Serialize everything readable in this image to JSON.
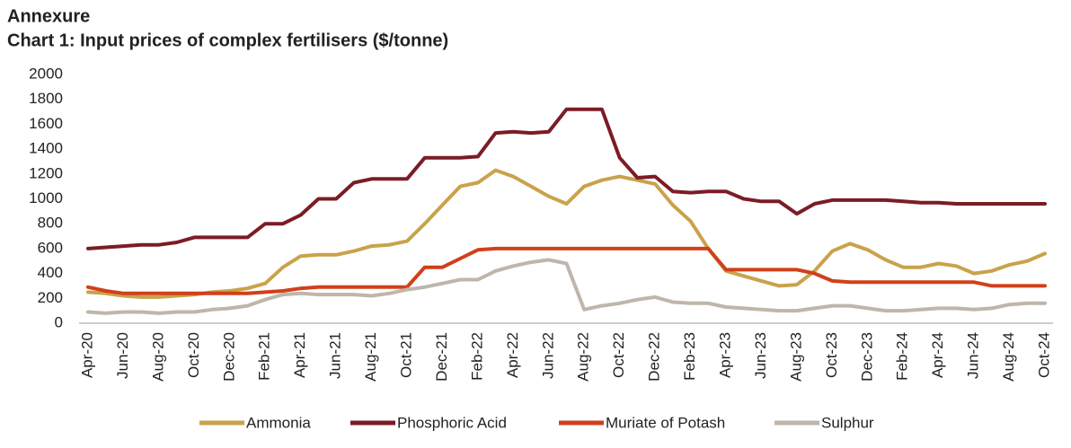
{
  "chart_data": {
    "type": "line",
    "title": "Annexure",
    "subtitle": "Chart 1: Input prices of complex fertilisers ($/tonne)",
    "categories": [
      "Apr-20",
      null,
      "Jun-20",
      null,
      "Aug-20",
      null,
      "Oct-20",
      null,
      "Dec-20",
      null,
      "Feb-21",
      null,
      "Apr-21",
      null,
      "Jun-21",
      null,
      "Aug-21",
      null,
      "Oct-21",
      null,
      "Dec-21",
      null,
      "Feb-22",
      null,
      "Apr-22",
      null,
      "Jun-22",
      null,
      "Aug-22",
      null,
      "Oct-22",
      null,
      "Dec-22",
      null,
      "Feb-23",
      null,
      "Apr-23",
      null,
      "Jun-23",
      null,
      "Aug-23",
      null,
      "Oct-23",
      null,
      "Dec-23",
      null,
      "Feb-24",
      null,
      "Apr-24",
      null,
      "Jun-24",
      null,
      "Aug-24",
      null,
      "Oct-24"
    ],
    "ylim": [
      0,
      2000
    ],
    "yticks": [
      0,
      200,
      400,
      600,
      800,
      1000,
      1200,
      1400,
      1600,
      1800,
      2000
    ],
    "grid": false,
    "legend": "bottom",
    "series": [
      {
        "name": "Ammonia",
        "color": "#c9a24a",
        "values": [
          250,
          240,
          220,
          210,
          210,
          220,
          230,
          250,
          260,
          280,
          320,
          450,
          540,
          550,
          550,
          580,
          620,
          630,
          660,
          800,
          950,
          1100,
          1130,
          1230,
          1180,
          1100,
          1020,
          960,
          1100,
          1150,
          1180,
          1150,
          1120,
          950,
          820,
          600,
          420,
          380,
          340,
          300,
          310,
          420,
          580,
          640,
          590,
          510,
          450,
          450,
          480,
          460,
          400,
          420,
          470,
          500,
          560
        ]
      },
      {
        "name": "Phosphoric Acid",
        "color": "#7b1c26",
        "values": [
          600,
          610,
          620,
          630,
          630,
          650,
          690,
          690,
          690,
          690,
          800,
          800,
          870,
          1000,
          1000,
          1130,
          1160,
          1160,
          1160,
          1330,
          1330,
          1330,
          1340,
          1530,
          1540,
          1530,
          1540,
          1720,
          1720,
          1720,
          1330,
          1170,
          1180,
          1060,
          1050,
          1060,
          1060,
          1000,
          980,
          980,
          880,
          960,
          990,
          990,
          990,
          990,
          980,
          970,
          970,
          960,
          960,
          960,
          960,
          960,
          960
        ]
      },
      {
        "name": "Muriate of Potash",
        "color": "#d0401b",
        "values": [
          290,
          260,
          240,
          240,
          240,
          240,
          240,
          240,
          240,
          240,
          250,
          260,
          280,
          290,
          290,
          290,
          290,
          290,
          290,
          450,
          450,
          520,
          590,
          600,
          600,
          600,
          600,
          600,
          600,
          600,
          600,
          600,
          600,
          600,
          600,
          600,
          430,
          430,
          430,
          430,
          430,
          400,
          340,
          330,
          330,
          330,
          330,
          330,
          330,
          330,
          330,
          300,
          300,
          300,
          300
        ]
      },
      {
        "name": "Sulphur",
        "color": "#bfb6aa",
        "values": [
          90,
          80,
          90,
          90,
          80,
          90,
          90,
          110,
          120,
          140,
          190,
          230,
          240,
          230,
          230,
          230,
          220,
          240,
          270,
          290,
          320,
          350,
          350,
          420,
          460,
          490,
          510,
          480,
          110,
          140,
          160,
          190,
          210,
          170,
          160,
          160,
          130,
          120,
          110,
          100,
          100,
          120,
          140,
          140,
          120,
          100,
          100,
          110,
          120,
          120,
          110,
          120,
          150,
          160,
          160
        ]
      }
    ]
  }
}
